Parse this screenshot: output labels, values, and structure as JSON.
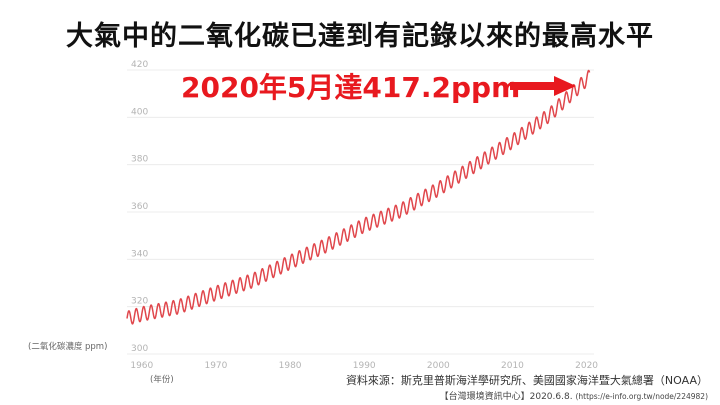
{
  "slide": {
    "title": "大氣中的二氧化碳已達到有記錄以來的最高水平",
    "callout": "2020年5月達417.2ppm",
    "y_unit": "(二氧化碳濃度 ppm)",
    "x_unit": "(年份)",
    "source": "資料來源：斯克里普斯海洋學研究所、美國國家海洋暨大氣總署（NOAA）",
    "credit_prefix": "【台灣環境資訊中心】2020.6.8.",
    "credit_url": "(https://e-info.org.tw/node/224982)",
    "colors": {
      "callout": "#e8191f",
      "series": "#e0474c"
    }
  },
  "chart_data": {
    "type": "line",
    "title": "",
    "xlabel": "(年份)",
    "ylabel": "(二氧化碳濃度 ppm)",
    "xlim": [
      1958,
      2021
    ],
    "ylim": [
      300,
      420
    ],
    "x_ticks": [
      1960,
      1970,
      1980,
      1990,
      2000,
      2010,
      2020
    ],
    "y_ticks": [
      300,
      320,
      340,
      360,
      380,
      400,
      420
    ],
    "grid": true,
    "seasonal_amplitude_ppm": 3,
    "series": [
      {
        "x": [
          1958,
          1960,
          1965,
          1970,
          1975,
          1980,
          1985,
          1990,
          1995,
          2000,
          2005,
          2010,
          2015,
          2020.4
        ],
        "values": [
          315,
          316.9,
          320.0,
          325.7,
          331.1,
          338.8,
          346.1,
          354.4,
          360.8,
          369.7,
          379.8,
          389.9,
          401.0,
          417.2
        ]
      }
    ]
  }
}
